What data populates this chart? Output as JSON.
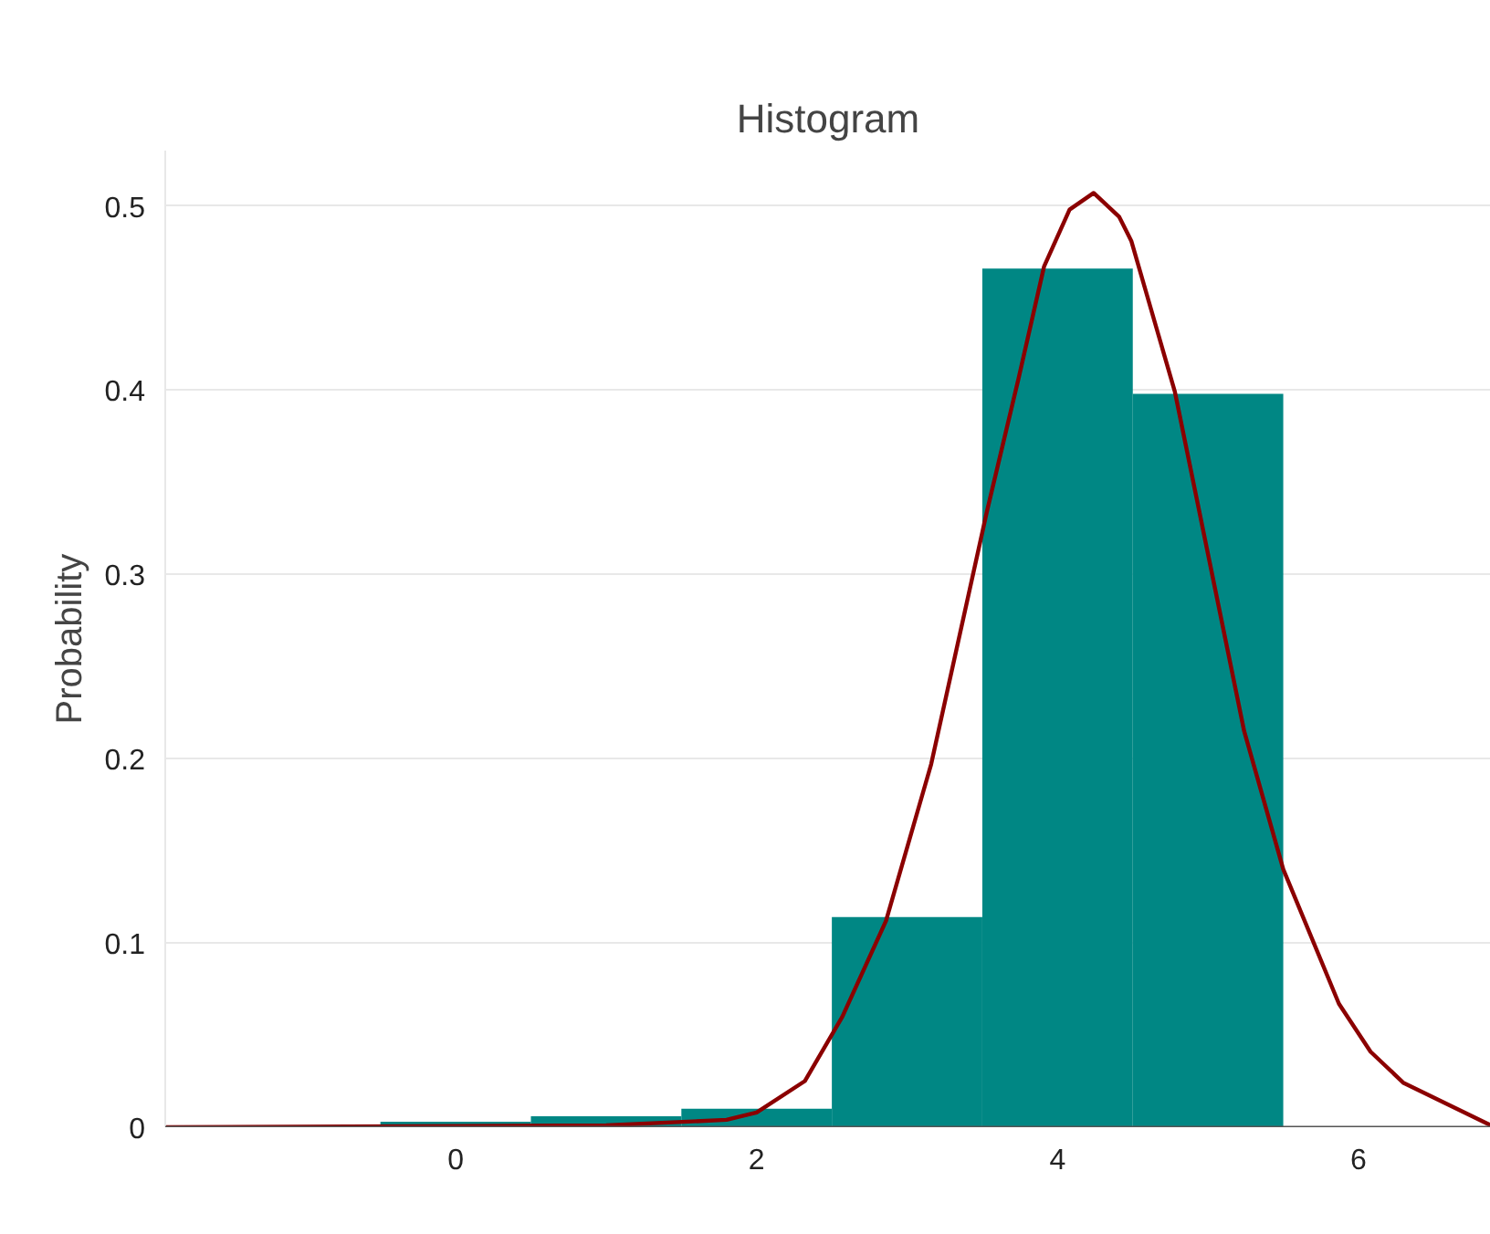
{
  "chart_data": {
    "type": "histogram",
    "title": "Histogram",
    "ylabel": "Probability",
    "bins": [
      -0.5,
      0.5,
      1.5,
      2.5,
      3.5,
      4.5,
      5.5
    ],
    "values": [
      0.003,
      0.006,
      0.01,
      0.114,
      0.466,
      0.398
    ],
    "color": "#008784",
    "series": [
      {
        "type": "line",
        "color": "#8b0000",
        "x": [
          -1.93,
          1.0,
          1.8,
          2.0,
          2.32,
          2.57,
          2.86,
          3.16,
          3.53,
          3.74,
          3.91,
          4.08,
          4.24,
          4.41,
          4.49,
          4.78,
          5.01,
          5.24,
          5.5,
          5.87,
          6.08,
          6.3,
          6.88
        ],
        "values": [
          0,
          0.001,
          0.004,
          0.008,
          0.025,
          0.06,
          0.112,
          0.197,
          0.334,
          0.406,
          0.467,
          0.498,
          0.507,
          0.494,
          0.481,
          0.399,
          0.307,
          0.215,
          0.14,
          0.067,
          0.041,
          0.024,
          0.001
        ]
      }
    ],
    "xlim": [
      -1.93,
      6.88
    ],
    "ylim": [
      0,
      0.53
    ],
    "xticks": [
      0,
      2,
      4,
      6
    ],
    "yticks": [
      0,
      0.1,
      0.2,
      0.3,
      0.4,
      0.5
    ],
    "grid": "y",
    "line_style": "solid",
    "marker": "none"
  }
}
